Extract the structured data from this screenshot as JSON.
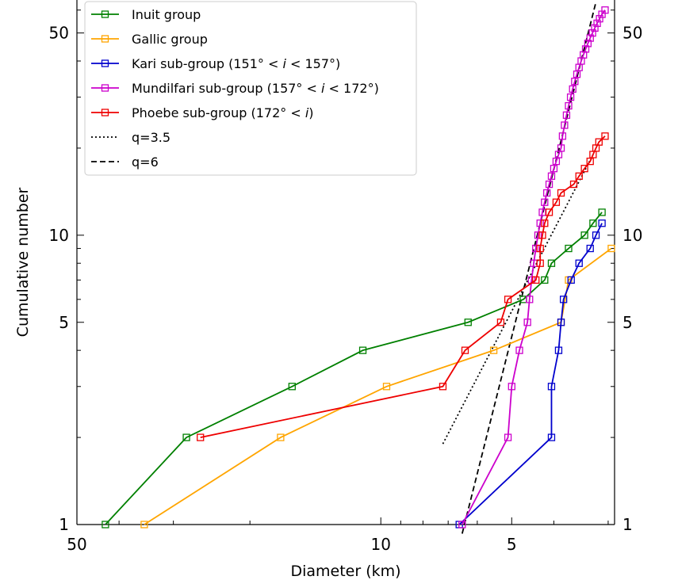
{
  "chart_data": {
    "type": "line",
    "xlabel": "Diameter (km)",
    "ylabel": "Cumulative number",
    "x_scale": "log-reversed",
    "y_scale": "log",
    "xlim": [
      50,
      2.9
    ],
    "ylim": [
      1,
      65
    ],
    "x_ticks": [
      50,
      10,
      5
    ],
    "y_ticks": [
      1,
      5,
      10,
      50
    ],
    "grid": false,
    "legend_position": "top-left",
    "series": [
      {
        "name": "Inuit group",
        "color": "#008000",
        "marker": "square-open",
        "x": [
          43,
          28,
          16,
          11,
          6.3,
          4.7,
          4.2,
          4.05,
          3.7,
          3.4,
          3.25,
          3.1
        ],
        "y": [
          1,
          2,
          3,
          4,
          5,
          6,
          7,
          8,
          9,
          10,
          11,
          12
        ]
      },
      {
        "name": "Gallic group",
        "color": "#FFA500",
        "marker": "square-open",
        "x": [
          35,
          17,
          9.7,
          5.5,
          3.85,
          3.7,
          2.95
        ],
        "y": [
          1,
          2,
          3,
          4,
          5,
          7,
          9
        ]
      },
      {
        "name": "Kari sub-group (151° < i < 157°)",
        "color": "#0000CD",
        "marker": "square-open",
        "x": [
          6.6,
          4.05,
          4.05,
          3.9,
          3.85,
          3.8,
          3.65,
          3.5,
          3.3,
          3.2,
          3.1
        ],
        "y": [
          1,
          2,
          3,
          4,
          5,
          6,
          7,
          8,
          9,
          10,
          11
        ]
      },
      {
        "name": "Mundilfari sub-group (157° < i < 172°)",
        "color": "#CC00CC",
        "marker": "square-open",
        "x": [
          6.5,
          5.1,
          5.0,
          4.8,
          4.6,
          4.55,
          4.5,
          4.45,
          4.4,
          4.35,
          4.3,
          4.25,
          4.2,
          4.15,
          4.1,
          4.05,
          4.0,
          3.95,
          3.9,
          3.85,
          3.82,
          3.78,
          3.74,
          3.7,
          3.66,
          3.62,
          3.58,
          3.54,
          3.5,
          3.46,
          3.42,
          3.38,
          3.34,
          3.3,
          3.26,
          3.22,
          3.18,
          3.14,
          3.1,
          3.05
        ],
        "y": [
          1,
          2,
          3,
          4,
          5,
          6,
          7,
          8,
          9,
          10,
          11,
          12,
          13,
          14,
          15,
          16,
          17,
          18,
          19,
          20,
          22,
          24,
          26,
          28,
          30,
          32,
          34,
          36,
          38,
          40,
          42,
          44,
          46,
          48,
          50,
          52,
          54,
          56,
          58,
          60
        ]
      },
      {
        "name": "Phoebe sub-group (172° < i)",
        "color": "#EE0000",
        "marker": "square-open",
        "x": [
          26,
          7.2,
          6.4,
          5.3,
          5.1,
          4.4,
          4.3,
          4.3,
          4.25,
          4.2,
          4.1,
          3.95,
          3.85,
          3.6,
          3.5,
          3.4,
          3.3,
          3.25,
          3.2,
          3.15,
          3.05
        ],
        "y": [
          2,
          3,
          4,
          5,
          6,
          7,
          8,
          9,
          10,
          11,
          12,
          13,
          14,
          15,
          16,
          17,
          18,
          19,
          20,
          21,
          22
        ]
      }
    ],
    "reference_lines": [
      {
        "name": "q=3.5",
        "style": "dotted",
        "color": "#000000",
        "x": [
          7.2,
          3.25
        ],
        "y": [
          1.9,
          19
        ]
      },
      {
        "name": "q=6",
        "style": "dashed",
        "color": "#000000",
        "x": [
          6.5,
          3.2
        ],
        "y": [
          0.93,
          64
        ]
      }
    ],
    "legend": [
      {
        "label": "Inuit group"
      },
      {
        "label": "Gallic group"
      },
      {
        "label_parts": [
          "Kari sub-group (151° < ",
          "i",
          " < 157°)"
        ]
      },
      {
        "label_parts": [
          "Mundilfari sub-group (157° < ",
          "i",
          " < 172°)"
        ]
      },
      {
        "label_parts": [
          "Phoebe sub-group (172° < ",
          "i",
          ")"
        ]
      },
      {
        "label": "q=3.5"
      },
      {
        "label": "q=6"
      }
    ]
  }
}
